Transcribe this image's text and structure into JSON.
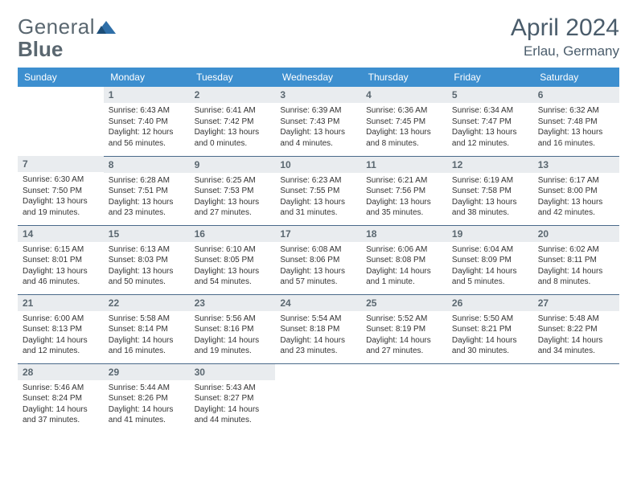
{
  "brand": {
    "part1": "General",
    "part2": "Blue"
  },
  "title": {
    "month": "April 2024",
    "location": "Erlau, Germany"
  },
  "colors": {
    "header_bg": "#3d8fcf",
    "daynum_bg": "#e9ecef",
    "rule": "#4a6a8a",
    "text_muted": "#5a6770",
    "logo_accent": "#2f6fa8"
  },
  "weekdays": [
    "Sunday",
    "Monday",
    "Tuesday",
    "Wednesday",
    "Thursday",
    "Friday",
    "Saturday"
  ],
  "weeks": [
    [
      {
        "n": "",
        "sr": "",
        "ss": "",
        "dl": ""
      },
      {
        "n": "1",
        "sr": "Sunrise: 6:43 AM",
        "ss": "Sunset: 7:40 PM",
        "dl": "Daylight: 12 hours and 56 minutes."
      },
      {
        "n": "2",
        "sr": "Sunrise: 6:41 AM",
        "ss": "Sunset: 7:42 PM",
        "dl": "Daylight: 13 hours and 0 minutes."
      },
      {
        "n": "3",
        "sr": "Sunrise: 6:39 AM",
        "ss": "Sunset: 7:43 PM",
        "dl": "Daylight: 13 hours and 4 minutes."
      },
      {
        "n": "4",
        "sr": "Sunrise: 6:36 AM",
        "ss": "Sunset: 7:45 PM",
        "dl": "Daylight: 13 hours and 8 minutes."
      },
      {
        "n": "5",
        "sr": "Sunrise: 6:34 AM",
        "ss": "Sunset: 7:47 PM",
        "dl": "Daylight: 13 hours and 12 minutes."
      },
      {
        "n": "6",
        "sr": "Sunrise: 6:32 AM",
        "ss": "Sunset: 7:48 PM",
        "dl": "Daylight: 13 hours and 16 minutes."
      }
    ],
    [
      {
        "n": "7",
        "sr": "Sunrise: 6:30 AM",
        "ss": "Sunset: 7:50 PM",
        "dl": "Daylight: 13 hours and 19 minutes."
      },
      {
        "n": "8",
        "sr": "Sunrise: 6:28 AM",
        "ss": "Sunset: 7:51 PM",
        "dl": "Daylight: 13 hours and 23 minutes."
      },
      {
        "n": "9",
        "sr": "Sunrise: 6:25 AM",
        "ss": "Sunset: 7:53 PM",
        "dl": "Daylight: 13 hours and 27 minutes."
      },
      {
        "n": "10",
        "sr": "Sunrise: 6:23 AM",
        "ss": "Sunset: 7:55 PM",
        "dl": "Daylight: 13 hours and 31 minutes."
      },
      {
        "n": "11",
        "sr": "Sunrise: 6:21 AM",
        "ss": "Sunset: 7:56 PM",
        "dl": "Daylight: 13 hours and 35 minutes."
      },
      {
        "n": "12",
        "sr": "Sunrise: 6:19 AM",
        "ss": "Sunset: 7:58 PM",
        "dl": "Daylight: 13 hours and 38 minutes."
      },
      {
        "n": "13",
        "sr": "Sunrise: 6:17 AM",
        "ss": "Sunset: 8:00 PM",
        "dl": "Daylight: 13 hours and 42 minutes."
      }
    ],
    [
      {
        "n": "14",
        "sr": "Sunrise: 6:15 AM",
        "ss": "Sunset: 8:01 PM",
        "dl": "Daylight: 13 hours and 46 minutes."
      },
      {
        "n": "15",
        "sr": "Sunrise: 6:13 AM",
        "ss": "Sunset: 8:03 PM",
        "dl": "Daylight: 13 hours and 50 minutes."
      },
      {
        "n": "16",
        "sr": "Sunrise: 6:10 AM",
        "ss": "Sunset: 8:05 PM",
        "dl": "Daylight: 13 hours and 54 minutes."
      },
      {
        "n": "17",
        "sr": "Sunrise: 6:08 AM",
        "ss": "Sunset: 8:06 PM",
        "dl": "Daylight: 13 hours and 57 minutes."
      },
      {
        "n": "18",
        "sr": "Sunrise: 6:06 AM",
        "ss": "Sunset: 8:08 PM",
        "dl": "Daylight: 14 hours and 1 minute."
      },
      {
        "n": "19",
        "sr": "Sunrise: 6:04 AM",
        "ss": "Sunset: 8:09 PM",
        "dl": "Daylight: 14 hours and 5 minutes."
      },
      {
        "n": "20",
        "sr": "Sunrise: 6:02 AM",
        "ss": "Sunset: 8:11 PM",
        "dl": "Daylight: 14 hours and 8 minutes."
      }
    ],
    [
      {
        "n": "21",
        "sr": "Sunrise: 6:00 AM",
        "ss": "Sunset: 8:13 PM",
        "dl": "Daylight: 14 hours and 12 minutes."
      },
      {
        "n": "22",
        "sr": "Sunrise: 5:58 AM",
        "ss": "Sunset: 8:14 PM",
        "dl": "Daylight: 14 hours and 16 minutes."
      },
      {
        "n": "23",
        "sr": "Sunrise: 5:56 AM",
        "ss": "Sunset: 8:16 PM",
        "dl": "Daylight: 14 hours and 19 minutes."
      },
      {
        "n": "24",
        "sr": "Sunrise: 5:54 AM",
        "ss": "Sunset: 8:18 PM",
        "dl": "Daylight: 14 hours and 23 minutes."
      },
      {
        "n": "25",
        "sr": "Sunrise: 5:52 AM",
        "ss": "Sunset: 8:19 PM",
        "dl": "Daylight: 14 hours and 27 minutes."
      },
      {
        "n": "26",
        "sr": "Sunrise: 5:50 AM",
        "ss": "Sunset: 8:21 PM",
        "dl": "Daylight: 14 hours and 30 minutes."
      },
      {
        "n": "27",
        "sr": "Sunrise: 5:48 AM",
        "ss": "Sunset: 8:22 PM",
        "dl": "Daylight: 14 hours and 34 minutes."
      }
    ],
    [
      {
        "n": "28",
        "sr": "Sunrise: 5:46 AM",
        "ss": "Sunset: 8:24 PM",
        "dl": "Daylight: 14 hours and 37 minutes."
      },
      {
        "n": "29",
        "sr": "Sunrise: 5:44 AM",
        "ss": "Sunset: 8:26 PM",
        "dl": "Daylight: 14 hours and 41 minutes."
      },
      {
        "n": "30",
        "sr": "Sunrise: 5:43 AM",
        "ss": "Sunset: 8:27 PM",
        "dl": "Daylight: 14 hours and 44 minutes."
      },
      {
        "n": "",
        "sr": "",
        "ss": "",
        "dl": ""
      },
      {
        "n": "",
        "sr": "",
        "ss": "",
        "dl": ""
      },
      {
        "n": "",
        "sr": "",
        "ss": "",
        "dl": ""
      },
      {
        "n": "",
        "sr": "",
        "ss": "",
        "dl": ""
      }
    ]
  ]
}
